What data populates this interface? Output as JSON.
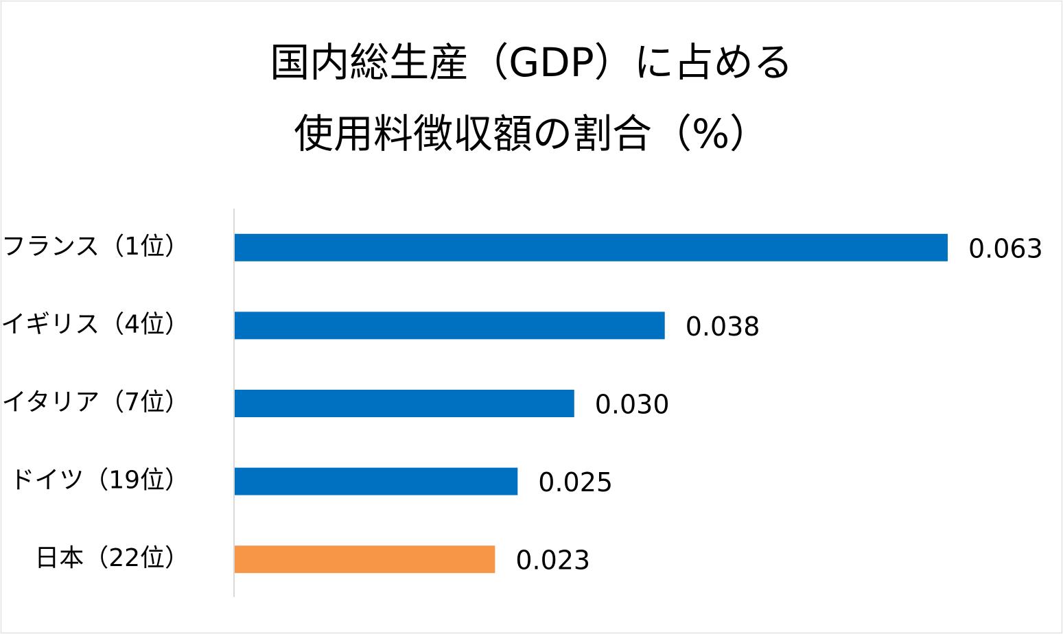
{
  "chart_data": {
    "type": "bar",
    "orientation": "horizontal",
    "title_lines": [
      "国内総生産（GDP）に占める",
      "使用料徴収額の割合（%）"
    ],
    "categories": [
      "フランス（1位）",
      "イギリス（4位）",
      "イタリア（7位）",
      "ドイツ（19位）",
      "日本（22位）"
    ],
    "values": [
      0.063,
      0.038,
      0.03,
      0.025,
      0.023
    ],
    "value_labels": [
      "0.063",
      "0.038",
      "0.030",
      "0.025",
      "0.023"
    ],
    "bar_colors": [
      "#0070C0",
      "#0070C0",
      "#0070C0",
      "#0070C0",
      "#F79646"
    ],
    "xlim": [
      0,
      0.063
    ],
    "axis_line_color": "#d9d9d9",
    "grid": false,
    "legend": false
  }
}
